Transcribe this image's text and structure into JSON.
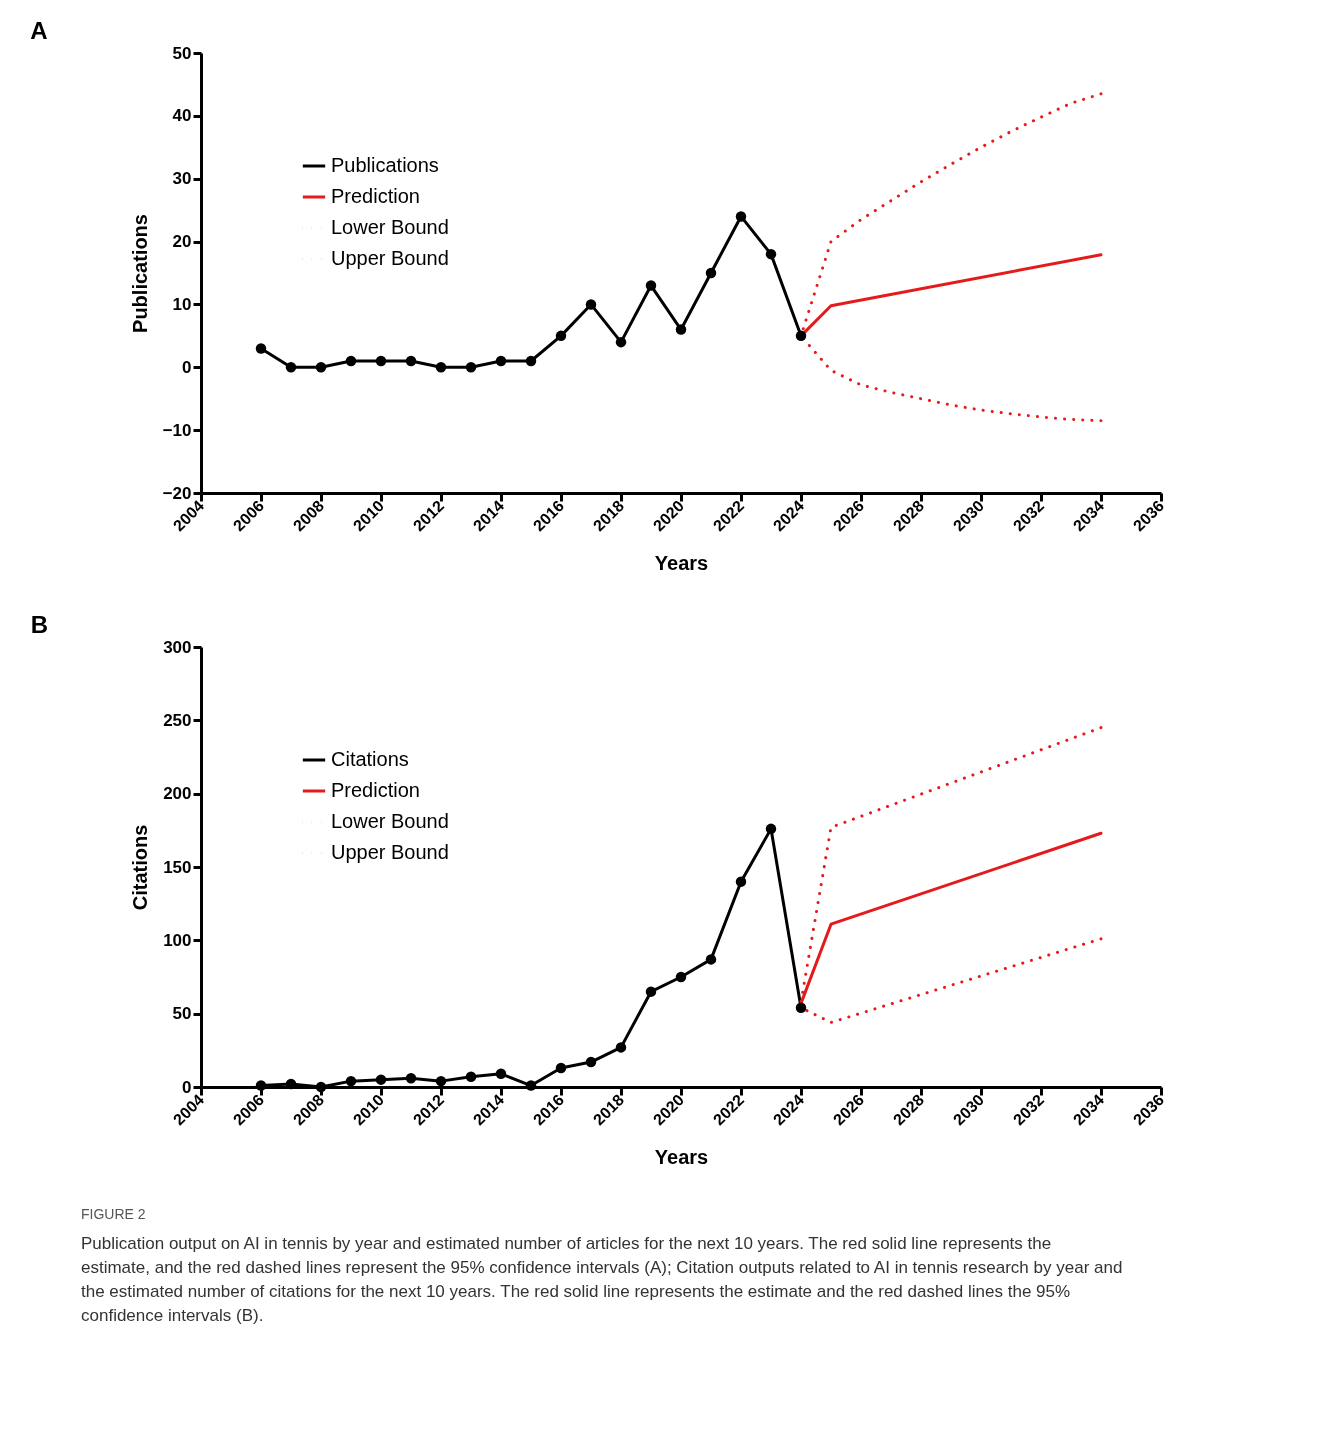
{
  "chart_data": [
    {
      "type": "line",
      "title": "A",
      "xlabel": "Years",
      "ylabel": "Publications",
      "xlim": [
        2004,
        2036
      ],
      "xticks": [
        2004,
        2006,
        2008,
        2010,
        2012,
        2014,
        2016,
        2018,
        2020,
        2022,
        2024,
        2026,
        2028,
        2030,
        2032,
        2034,
        2036
      ],
      "ylim": [
        -20,
        50
      ],
      "yticks": [
        -20,
        -10,
        0,
        10,
        20,
        30,
        40,
        50
      ],
      "grid": false,
      "legend": "top left",
      "series": [
        {
          "name": "Publications",
          "color": "#000000",
          "line_style": "solid",
          "marker": "circle",
          "x": [
            2006,
            2007,
            2008,
            2009,
            2010,
            2011,
            2012,
            2013,
            2014,
            2015,
            2016,
            2017,
            2018,
            2019,
            2020,
            2021,
            2022,
            2023,
            2024
          ],
          "values": [
            3,
            0,
            0,
            1,
            1,
            1,
            0,
            0,
            1,
            1,
            5,
            10,
            4,
            13,
            6,
            15,
            24,
            18,
            5
          ]
        },
        {
          "name": "Prediction",
          "color": "#e41a1c",
          "line_style": "solid",
          "marker": "none",
          "x": [
            2024,
            2025,
            2034
          ],
          "values": [
            5,
            9.8,
            17.9
          ]
        },
        {
          "name": "Lower Bound",
          "color": "#e41a1c",
          "line_style": "dotted",
          "marker": "none",
          "x": [
            2024,
            2025,
            2026,
            2027,
            2028,
            2029,
            2030,
            2031,
            2032,
            2033,
            2034
          ],
          "values": [
            5,
            -0.5,
            -2.8,
            -4,
            -5,
            -6,
            -6.8,
            -7.4,
            -7.9,
            -8.3,
            -8.5
          ]
        },
        {
          "name": "Upper Bound",
          "color": "#e41a1c",
          "line_style": "dotted",
          "marker": "none",
          "x": [
            2024,
            2025,
            2026,
            2027,
            2028,
            2029,
            2030,
            2031,
            2032,
            2033,
            2034
          ],
          "values": [
            5,
            20,
            23.5,
            26.5,
            29.5,
            32.3,
            35,
            37.5,
            39.8,
            42,
            43.5
          ]
        }
      ]
    },
    {
      "type": "line",
      "title": "B",
      "xlabel": "Years",
      "ylabel": "Citations",
      "xlim": [
        2004,
        2036
      ],
      "xticks": [
        2004,
        2006,
        2008,
        2010,
        2012,
        2014,
        2016,
        2018,
        2020,
        2022,
        2024,
        2026,
        2028,
        2030,
        2032,
        2034,
        2036
      ],
      "ylim": [
        0,
        300
      ],
      "yticks": [
        0,
        50,
        100,
        150,
        200,
        250,
        300
      ],
      "grid": false,
      "legend": "top left",
      "series": [
        {
          "name": "Citations",
          "color": "#000000",
          "line_style": "solid",
          "marker": "circle",
          "x": [
            2006,
            2007,
            2008,
            2009,
            2010,
            2011,
            2012,
            2013,
            2014,
            2015,
            2016,
            2017,
            2018,
            2019,
            2020,
            2021,
            2022,
            2023,
            2024
          ],
          "values": [
            1,
            2,
            0,
            4,
            5,
            6,
            4,
            7,
            9,
            1,
            13,
            17,
            27,
            65,
            75,
            87,
            140,
            176,
            54
          ]
        },
        {
          "name": "Prediction",
          "color": "#e41a1c",
          "line_style": "solid",
          "marker": "none",
          "x": [
            2024,
            2025,
            2034
          ],
          "values": [
            57,
            111,
            173
          ]
        },
        {
          "name": "Lower Bound",
          "color": "#e41a1c",
          "line_style": "dotted",
          "marker": "none",
          "x": [
            2024,
            2025,
            2034
          ],
          "values": [
            54,
            44,
            101
          ]
        },
        {
          "name": "Upper Bound",
          "color": "#e41a1c",
          "line_style": "dotted",
          "marker": "none",
          "x": [
            2024,
            2025,
            2034
          ],
          "values": [
            58,
            177,
            245
          ]
        }
      ],
      "annotations": [
        "FIGURE 2",
        "Publication output on AI in tennis by year and estimated number of articles for the next 10 years. The red solid line represents the estimate, and the red dashed lines represent the 95% confidence intervals (A); Citation outputs related to AI in tennis research by year and the estimated number of citations for the next 10 years. The red solid line represents the estimate and the red dashed lines the 95% confidence intervals (B)."
      ]
    }
  ]
}
